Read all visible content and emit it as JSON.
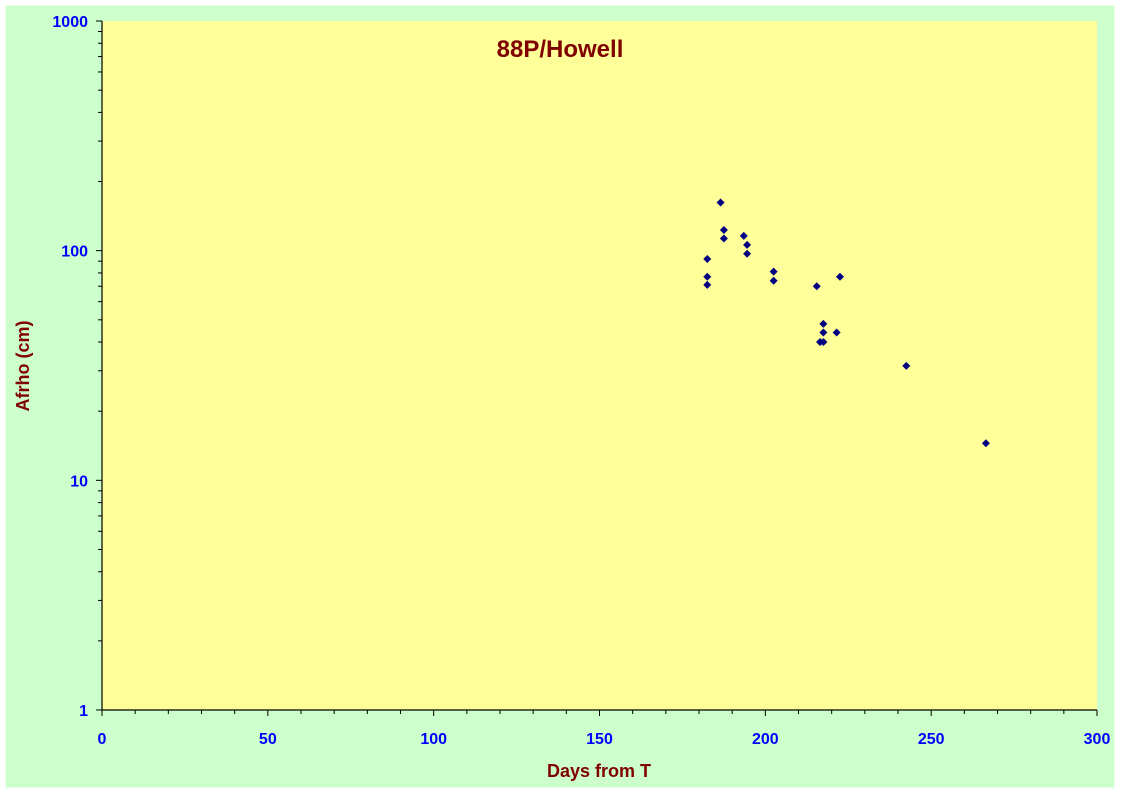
{
  "colors": {
    "chart_area": "#ccffcc",
    "plot_area": "#ffff99",
    "title": "#800000",
    "tick_label": "#0000ff",
    "axis_label": "#800000",
    "marker": "#000080",
    "axis": "#000000"
  },
  "chart_data": {
    "type": "scatter",
    "title": "88P/Howell",
    "xlabel": "Days from T",
    "ylabel": "Afrho (cm)",
    "xlim": [
      0,
      300
    ],
    "ylim": [
      1,
      1000
    ],
    "yscale": "log",
    "grid": false,
    "legend": "none",
    "x_ticks": [
      "0",
      "50",
      "100",
      "150",
      "200",
      "250",
      "300"
    ],
    "y_ticks": [
      "1",
      "10",
      "100",
      "1000"
    ],
    "marker": "diamond",
    "series": [
      {
        "points": [
          {
            "x": 182.5,
            "y": 92
          },
          {
            "x": 182.5,
            "y": 77
          },
          {
            "x": 182.5,
            "y": 71
          },
          {
            "x": 186.5,
            "y": 162
          },
          {
            "x": 187.5,
            "y": 123
          },
          {
            "x": 187.5,
            "y": 113
          },
          {
            "x": 193.5,
            "y": 116
          },
          {
            "x": 194.5,
            "y": 106
          },
          {
            "x": 194.5,
            "y": 97
          },
          {
            "x": 202.5,
            "y": 81
          },
          {
            "x": 202.5,
            "y": 74
          },
          {
            "x": 215.5,
            "y": 70
          },
          {
            "x": 216.5,
            "y": 40
          },
          {
            "x": 217.5,
            "y": 48
          },
          {
            "x": 217.5,
            "y": 44
          },
          {
            "x": 217.5,
            "y": 40
          },
          {
            "x": 221.5,
            "y": 44
          },
          {
            "x": 222.5,
            "y": 77
          },
          {
            "x": 242.5,
            "y": 31.5
          },
          {
            "x": 266.5,
            "y": 14.5
          }
        ]
      }
    ]
  }
}
